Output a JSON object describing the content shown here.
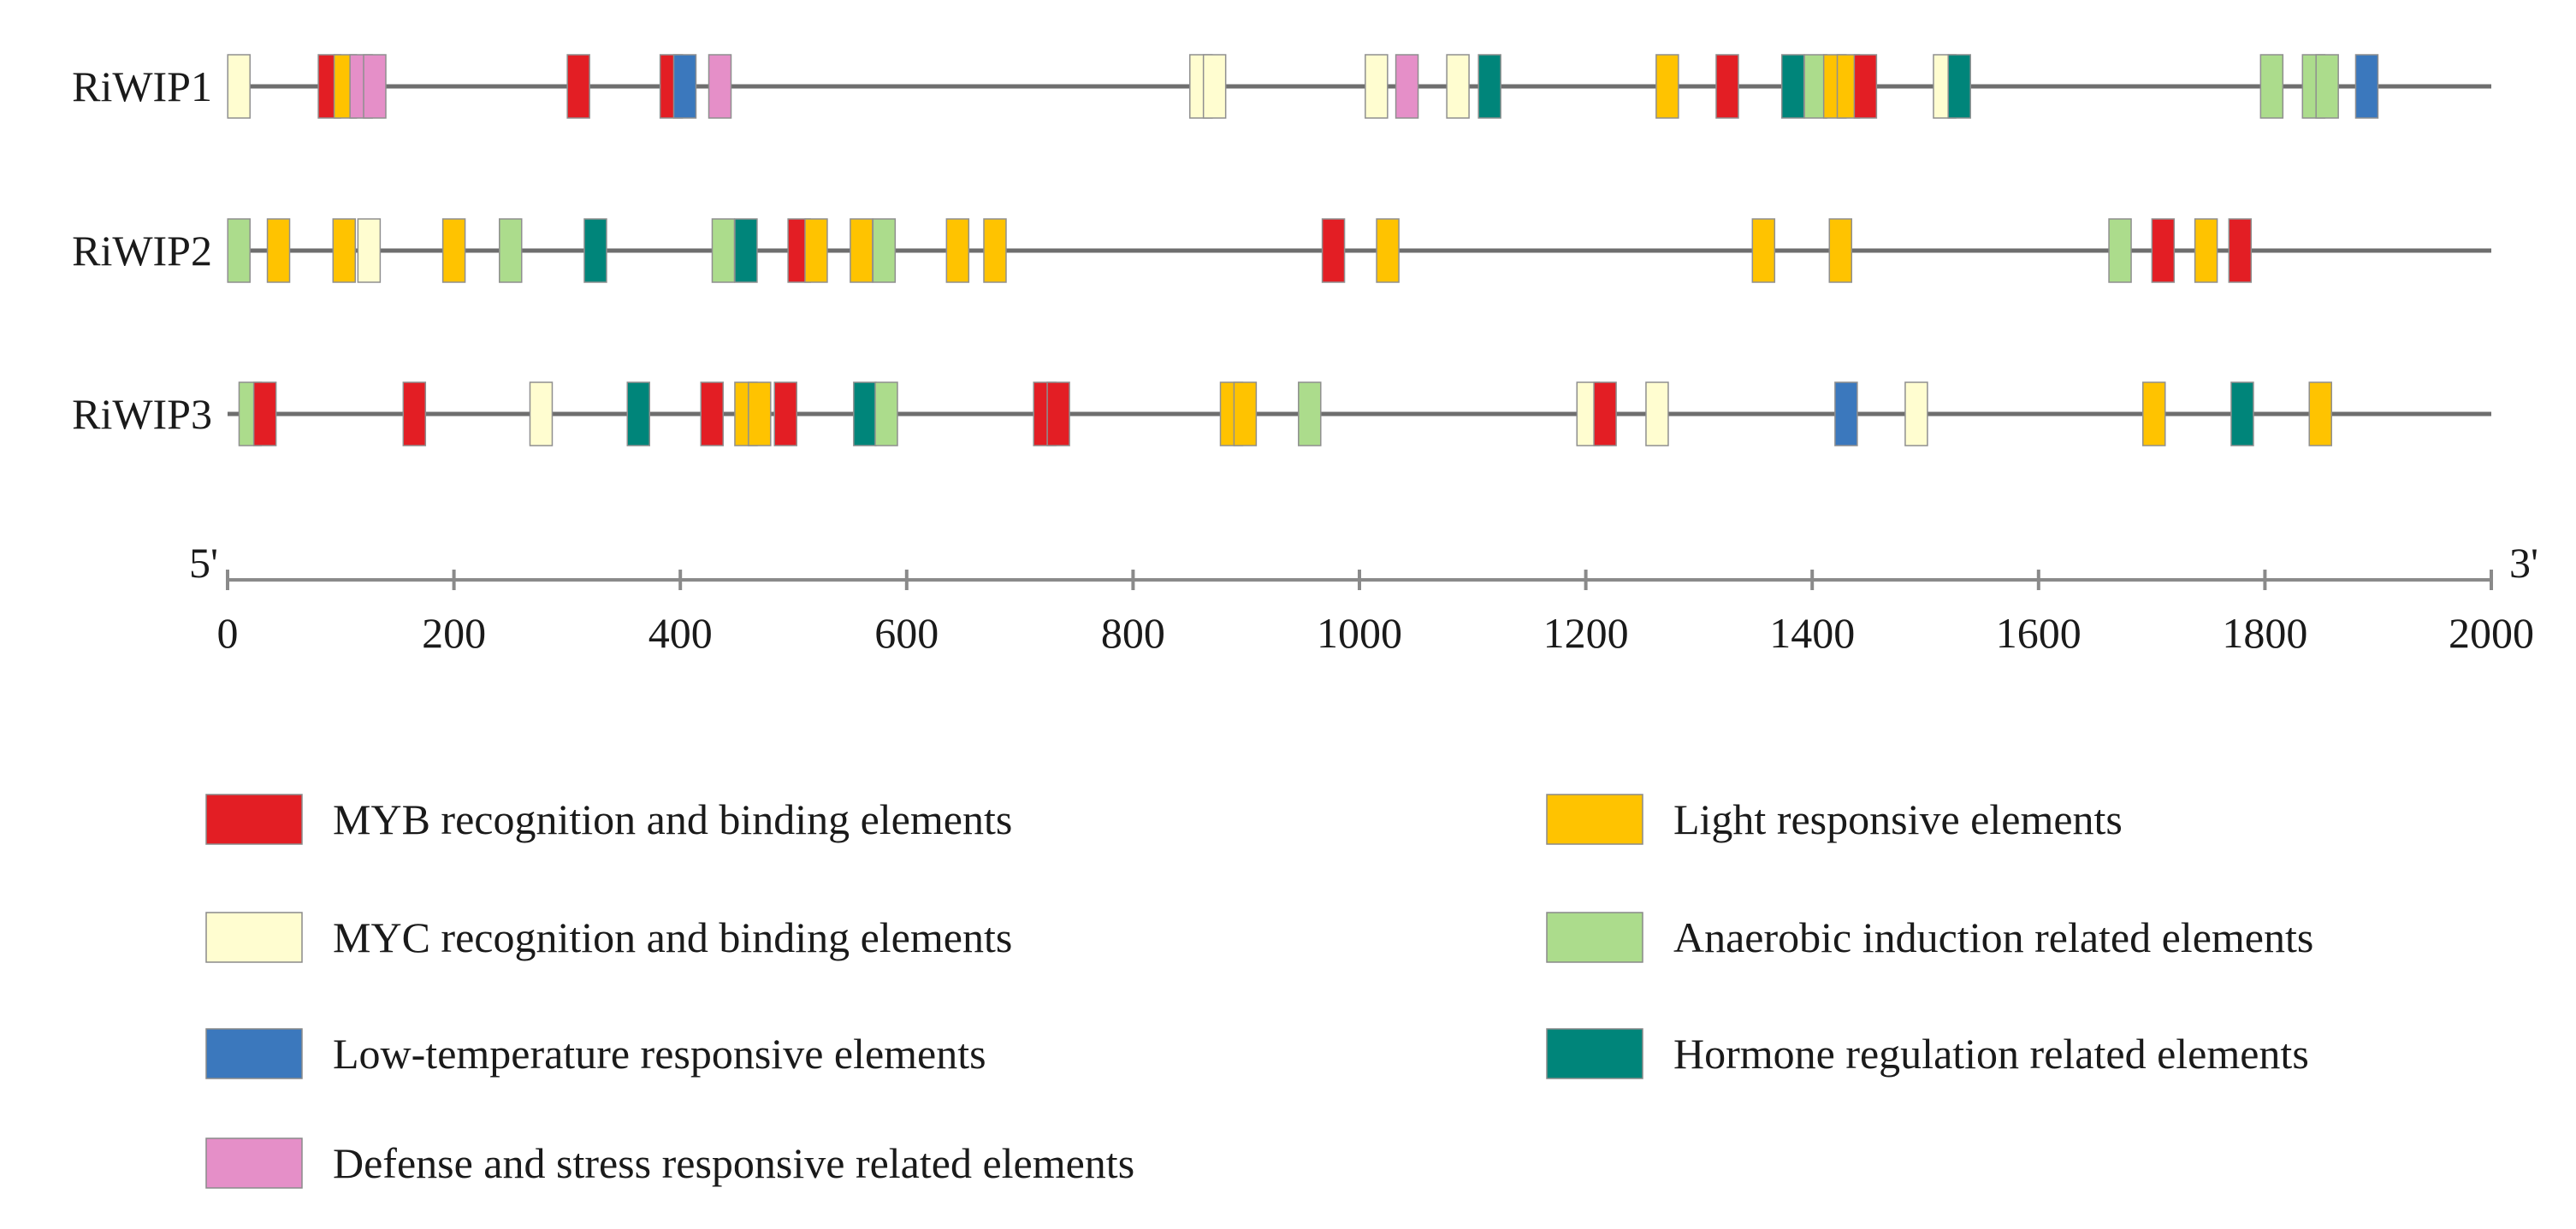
{
  "chart_data": {
    "type": "promoter-element-map",
    "x_axis": {
      "min": 0,
      "max": 2000,
      "ticks": [
        0,
        200,
        400,
        600,
        800,
        1000,
        1200,
        1400,
        1600,
        1800,
        2000
      ],
      "left_end_label": "5'",
      "right_end_label": "3'"
    },
    "categories": [
      {
        "key": "MYB",
        "label": "MYB recognition and binding elements",
        "color": "#e31e24"
      },
      {
        "key": "MYC",
        "label": "MYC recognition and binding elements",
        "color": "#fffdd0"
      },
      {
        "key": "LTR",
        "label": "Low-temperature responsive elements",
        "color": "#3b78bd"
      },
      {
        "key": "DEF",
        "label": "Defense and stress responsive related elements",
        "color": "#e58fc8"
      },
      {
        "key": "LIGHT",
        "label": "Light responsive elements",
        "color": "#ffc300"
      },
      {
        "key": "ANA",
        "label": "Anaerobic induction related elements",
        "color": "#acdc8c"
      },
      {
        "key": "HOR",
        "label": "Hormone regulation related elements",
        "color": "#00857a"
      }
    ],
    "genes": [
      {
        "name": "RiWIP1",
        "elements": [
          {
            "pos": 10,
            "type": "MYC"
          },
          {
            "pos": 90,
            "type": "MYB"
          },
          {
            "pos": 104,
            "type": "LIGHT"
          },
          {
            "pos": 118,
            "type": "DEF"
          },
          {
            "pos": 130,
            "type": "DEF"
          },
          {
            "pos": 310,
            "type": "MYB"
          },
          {
            "pos": 392,
            "type": "MYB"
          },
          {
            "pos": 404,
            "type": "LTR"
          },
          {
            "pos": 435,
            "type": "DEF"
          },
          {
            "pos": 860,
            "type": "MYC"
          },
          {
            "pos": 872,
            "type": "MYC"
          },
          {
            "pos": 1015,
            "type": "MYC"
          },
          {
            "pos": 1042,
            "type": "DEF"
          },
          {
            "pos": 1087,
            "type": "MYC"
          },
          {
            "pos": 1115,
            "type": "HOR"
          },
          {
            "pos": 1272,
            "type": "LIGHT"
          },
          {
            "pos": 1325,
            "type": "MYB"
          },
          {
            "pos": 1383,
            "type": "HOR"
          },
          {
            "pos": 1403,
            "type": "ANA"
          },
          {
            "pos": 1420,
            "type": "LIGHT"
          },
          {
            "pos": 1432,
            "type": "LIGHT"
          },
          {
            "pos": 1447,
            "type": "MYB"
          },
          {
            "pos": 1517,
            "type": "MYC"
          },
          {
            "pos": 1530,
            "type": "HOR"
          },
          {
            "pos": 1806,
            "type": "ANA"
          },
          {
            "pos": 1843,
            "type": "ANA"
          },
          {
            "pos": 1855,
            "type": "ANA"
          },
          {
            "pos": 1890,
            "type": "LTR"
          }
        ]
      },
      {
        "name": "RiWIP2",
        "elements": [
          {
            "pos": 10,
            "type": "ANA"
          },
          {
            "pos": 45,
            "type": "LIGHT"
          },
          {
            "pos": 103,
            "type": "LIGHT"
          },
          {
            "pos": 125,
            "type": "MYC"
          },
          {
            "pos": 200,
            "type": "LIGHT"
          },
          {
            "pos": 250,
            "type": "ANA"
          },
          {
            "pos": 325,
            "type": "HOR"
          },
          {
            "pos": 438,
            "type": "ANA"
          },
          {
            "pos": 458,
            "type": "HOR"
          },
          {
            "pos": 505,
            "type": "MYB"
          },
          {
            "pos": 520,
            "type": "LIGHT"
          },
          {
            "pos": 560,
            "type": "LIGHT"
          },
          {
            "pos": 580,
            "type": "ANA"
          },
          {
            "pos": 645,
            "type": "LIGHT"
          },
          {
            "pos": 678,
            "type": "LIGHT"
          },
          {
            "pos": 977,
            "type": "MYB"
          },
          {
            "pos": 1025,
            "type": "LIGHT"
          },
          {
            "pos": 1357,
            "type": "LIGHT"
          },
          {
            "pos": 1425,
            "type": "LIGHT"
          },
          {
            "pos": 1672,
            "type": "ANA"
          },
          {
            "pos": 1710,
            "type": "MYB"
          },
          {
            "pos": 1748,
            "type": "LIGHT"
          },
          {
            "pos": 1778,
            "type": "MYB"
          }
        ]
      },
      {
        "name": "RiWIP3",
        "elements": [
          {
            "pos": 20,
            "type": "ANA"
          },
          {
            "pos": 33,
            "type": "MYB"
          },
          {
            "pos": 165,
            "type": "MYB"
          },
          {
            "pos": 277,
            "type": "MYC"
          },
          {
            "pos": 363,
            "type": "HOR"
          },
          {
            "pos": 428,
            "type": "MYB"
          },
          {
            "pos": 458,
            "type": "LIGHT"
          },
          {
            "pos": 470,
            "type": "LIGHT"
          },
          {
            "pos": 493,
            "type": "MYB"
          },
          {
            "pos": 563,
            "type": "HOR"
          },
          {
            "pos": 582,
            "type": "ANA"
          },
          {
            "pos": 722,
            "type": "MYB"
          },
          {
            "pos": 734,
            "type": "MYB"
          },
          {
            "pos": 887,
            "type": "LIGHT"
          },
          {
            "pos": 899,
            "type": "LIGHT"
          },
          {
            "pos": 956,
            "type": "ANA"
          },
          {
            "pos": 1202,
            "type": "MYC"
          },
          {
            "pos": 1217,
            "type": "MYB"
          },
          {
            "pos": 1263,
            "type": "MYC"
          },
          {
            "pos": 1430,
            "type": "LTR"
          },
          {
            "pos": 1492,
            "type": "MYC"
          },
          {
            "pos": 1702,
            "type": "LIGHT"
          },
          {
            "pos": 1780,
            "type": "HOR"
          },
          {
            "pos": 1849,
            "type": "LIGHT"
          }
        ]
      }
    ]
  }
}
